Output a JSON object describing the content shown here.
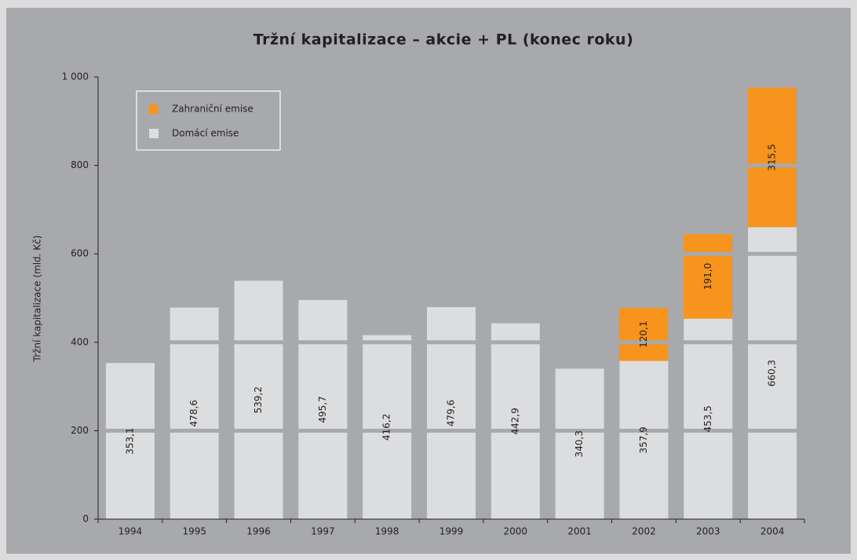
{
  "chart_data": {
    "type": "stacked_bar",
    "title": "Tržní kapitalizace – akcie + PL (konec roku)",
    "y_label": "Tržní kapitalizace (mld. Kč)",
    "categories": [
      "1994",
      "1995",
      "1996",
      "1997",
      "1998",
      "1999",
      "2000",
      "2001",
      "2002",
      "2003",
      "2004"
    ],
    "series": [
      {
        "name": "Domácí emise",
        "color": "#dcddde",
        "values": [
          353.1,
          478.6,
          539.2,
          495.7,
          416.2,
          479.6,
          442.9,
          340.3,
          357.9,
          453.5,
          660.3
        ],
        "value_labels": [
          "353,1",
          "478,6",
          "539,2",
          "495,7",
          "416,2",
          "479,6",
          "442,9",
          "340,3",
          "357,9",
          "453,5",
          "660,3"
        ]
      },
      {
        "name": "Zahraniční emise",
        "color": "#f7941d",
        "values": [
          null,
          null,
          null,
          null,
          null,
          null,
          null,
          null,
          120.1,
          191.0,
          315.5
        ],
        "value_labels": [
          null,
          null,
          null,
          null,
          null,
          null,
          null,
          null,
          "120,1",
          "191,0",
          "315,5"
        ]
      }
    ],
    "ylim": [
      0,
      1000
    ],
    "yticks": [
      0,
      200,
      400,
      600,
      800,
      {
        "value": 1000,
        "label": "1 000"
      }
    ],
    "grid": true
  }
}
